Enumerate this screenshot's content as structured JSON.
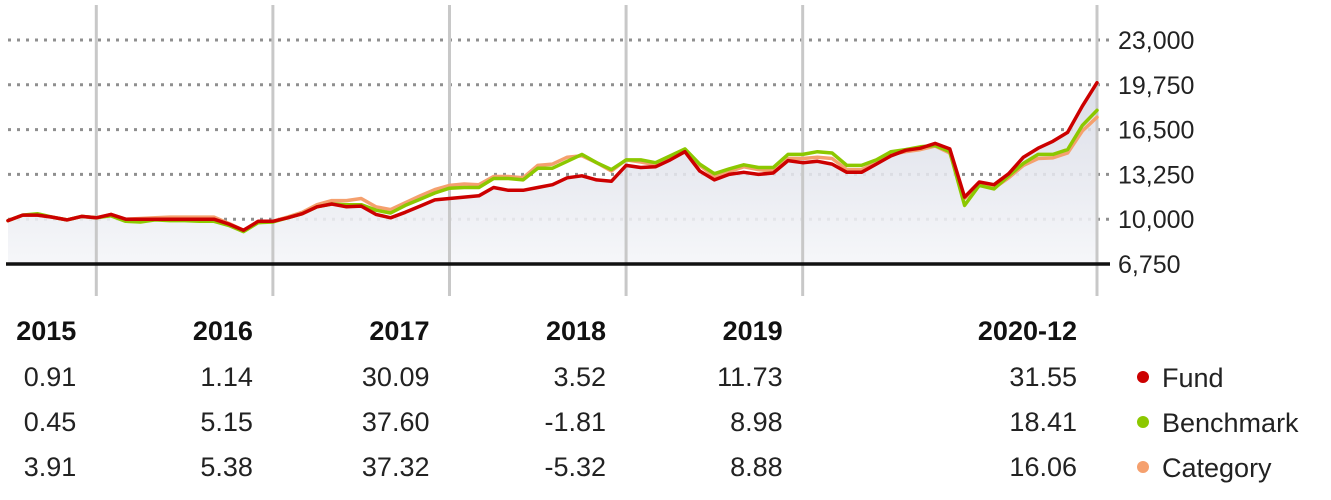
{
  "chart_data": {
    "type": "line",
    "title": "",
    "xlabel": "",
    "ylabel": "",
    "y_ticks": [
      "23,000",
      "19,750",
      "16,500",
      "13,250",
      "10,000",
      "6,750"
    ],
    "ylim": [
      6750,
      23000
    ],
    "grid": true,
    "x_start": "2014-07",
    "x_end": "2020-12",
    "year_labels": [
      "2015",
      "2016",
      "2017",
      "2018",
      "2019",
      "2020-12"
    ],
    "legend_position": "bottom-right",
    "series": [
      {
        "name": "Fund",
        "color": "#cc0000",
        "annual_returns": [
          "0.91",
          "1.14",
          "30.09",
          "3.52",
          "11.73",
          "31.55"
        ],
        "values": [
          9900,
          10300,
          10300,
          10150,
          9950,
          10200,
          10100,
          10350,
          10000,
          10000,
          10000,
          10000,
          10000,
          10000,
          10000,
          9650,
          9200,
          9850,
          9850,
          10100,
          10400,
          10900,
          11100,
          10900,
          10950,
          10350,
          10100,
          10500,
          10950,
          11400,
          11500,
          11600,
          11700,
          12300,
          12100,
          12100,
          12300,
          12500,
          13000,
          13150,
          12850,
          12750,
          13900,
          13750,
          13800,
          14300,
          14900,
          13500,
          12850,
          13250,
          13400,
          13250,
          13350,
          14250,
          14100,
          14200,
          14000,
          13400,
          13400,
          14000,
          14600,
          15000,
          15150,
          15500,
          15100,
          11600,
          12700,
          12500,
          13300,
          14500,
          15150,
          15650,
          16300,
          18200,
          19900
        ]
      },
      {
        "name": "Benchmark",
        "color": "#8cc800",
        "annual_returns": [
          "0.45",
          "5.15",
          "37.60",
          "-1.81",
          "8.98",
          "18.41"
        ],
        "values": [
          9900,
          10300,
          10400,
          10150,
          9950,
          10200,
          10100,
          10250,
          9850,
          9800,
          9950,
          9900,
          9900,
          9850,
          9850,
          9550,
          9100,
          9750,
          9800,
          10100,
          10400,
          10900,
          11100,
          11050,
          11050,
          10650,
          10450,
          11000,
          11450,
          11900,
          12250,
          12300,
          12300,
          12950,
          12950,
          12850,
          13700,
          13700,
          14200,
          14700,
          14100,
          13600,
          14300,
          14300,
          14100,
          14600,
          15100,
          14000,
          13300,
          13650,
          13950,
          13750,
          13750,
          14700,
          14700,
          14900,
          14800,
          13900,
          13900,
          14300,
          14900,
          15050,
          15250,
          15350,
          14900,
          11000,
          12450,
          12200,
          13150,
          14050,
          14700,
          14700,
          15050,
          16800,
          17900
        ]
      },
      {
        "name": "Category",
        "color": "#f5a06e",
        "annual_returns": [
          "3.91",
          "5.38",
          "37.32",
          "-5.32",
          "8.88",
          "16.06"
        ],
        "values": [
          9900,
          10300,
          10300,
          10150,
          9950,
          10200,
          10100,
          10350,
          10000,
          10050,
          10100,
          10150,
          10150,
          10150,
          10150,
          9700,
          9200,
          9750,
          9850,
          10150,
          10500,
          11050,
          11350,
          11350,
          11500,
          10900,
          10700,
          11200,
          11700,
          12150,
          12450,
          12550,
          12500,
          13100,
          13100,
          13000,
          13900,
          14000,
          14500,
          14600,
          14100,
          13500,
          14300,
          14150,
          13950,
          14500,
          15050,
          13900,
          13100,
          13450,
          13800,
          13600,
          13500,
          14400,
          14400,
          14500,
          14400,
          13600,
          13600,
          14100,
          14700,
          14900,
          15050,
          15300,
          14800,
          11500,
          12500,
          12250,
          13000,
          13900,
          14400,
          14450,
          14800,
          16400,
          17400
        ]
      }
    ]
  }
}
